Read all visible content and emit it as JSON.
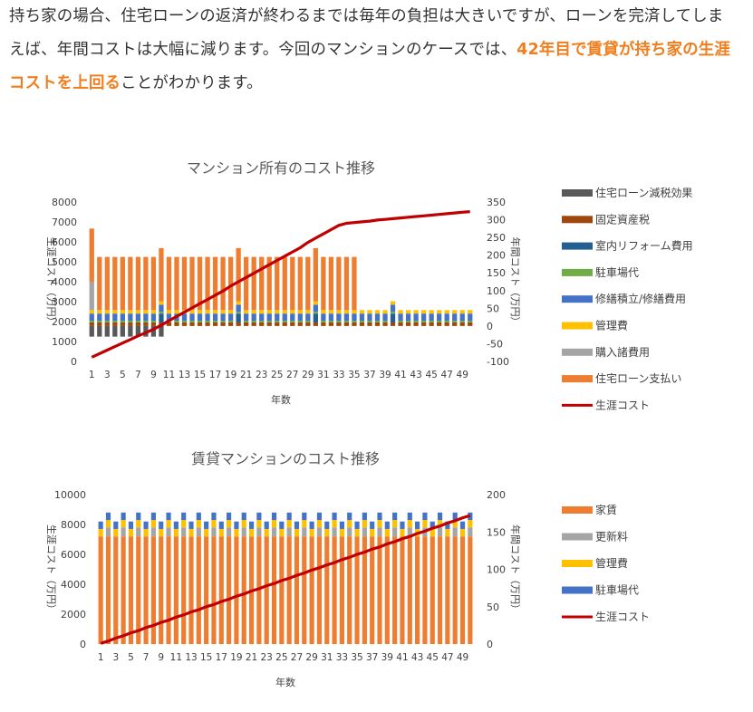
{
  "article": {
    "text_before": "持ち家の場合、住宅ローンの返済が終わるまでは毎年の負担は大きいですが、ローンを完済してしまえば、年間コストは大幅に減ります。今回のマンションのケースでは、",
    "highlight": "42年目で賃貸が持ち家の生涯コストを上回る",
    "text_after": "ことがわかります。"
  },
  "chart_data": [
    {
      "type": "bar",
      "stacked": true,
      "title": "マンション所有のコスト推移",
      "xlabel": "年数",
      "ylabel": "生涯コスト（万円）",
      "y2label": "年間コスト（万円）",
      "ylim": [
        0,
        8000
      ],
      "y2lim": [
        -100,
        350
      ],
      "yticks": [
        "0",
        "1000",
        "2000",
        "3000",
        "4000",
        "5000",
        "6000",
        "7000",
        "8000"
      ],
      "y2ticks": [
        "-100",
        "-50",
        "0",
        "50",
        "100",
        "150",
        "200",
        "250",
        "300",
        "350"
      ],
      "x": [
        1,
        2,
        3,
        4,
        5,
        6,
        7,
        8,
        9,
        10,
        11,
        12,
        13,
        14,
        15,
        16,
        17,
        18,
        19,
        20,
        21,
        22,
        23,
        24,
        25,
        26,
        27,
        28,
        29,
        30,
        31,
        32,
        33,
        34,
        35,
        36,
        37,
        38,
        39,
        40,
        41,
        42,
        43,
        44,
        45,
        46,
        47,
        48,
        49,
        50
      ],
      "xticks": [
        "1",
        "3",
        "5",
        "7",
        "9",
        "11",
        "13",
        "15",
        "17",
        "19",
        "21",
        "23",
        "25",
        "27",
        "29",
        "31",
        "33",
        "35",
        "37",
        "39",
        "41",
        "43",
        "45",
        "47",
        "49"
      ],
      "legend_position": "right",
      "axis": "y2",
      "series": [
        {
          "name": "住宅ローン減税効果",
          "color": "#595959",
          "segment": "below",
          "value_rule": "years 1-10",
          "value": -30
        },
        {
          "name": "固定資産税",
          "color": "#9e480e",
          "value": 10
        },
        {
          "name": "室内リフォーム費用",
          "color": "#255e91",
          "events": [
            10,
            20,
            30,
            40
          ],
          "value": 25
        },
        {
          "name": "駐車場代",
          "color": "#70ad47",
          "value": 5
        },
        {
          "name": "修繕積立/修繕費用",
          "color": "#4472c4",
          "value": 20
        },
        {
          "name": "管理費",
          "color": "#ffc000",
          "value": 10
        },
        {
          "name": "購入諸費用",
          "color": "#a5a5a5",
          "first_year": 80
        },
        {
          "name": "住宅ローン支払い",
          "color": "#ed7d31",
          "years": "1-35",
          "value": 150
        },
        {
          "name": "生涯コスト",
          "color": "#c00000",
          "kind": "line",
          "values": [
            -88,
            -78,
            -68,
            -58,
            -48,
            -38,
            -28,
            -19,
            -9,
            2,
            15,
            27,
            39,
            51,
            63,
            75,
            87,
            99,
            113,
            125,
            137,
            149,
            161,
            173,
            185,
            197,
            209,
            221,
            236,
            248,
            260,
            272,
            284,
            290,
            292,
            294,
            296,
            299,
            301,
            303,
            305,
            307,
            309,
            311,
            313,
            315,
            317,
            319,
            321,
            323
          ]
        }
      ]
    },
    {
      "type": "bar",
      "stacked": true,
      "title": "賃貸マンションのコスト推移",
      "xlabel": "年数",
      "ylabel": "生涯コスト（万円）",
      "y2label": "年間コスト（万円）",
      "ylim": [
        0,
        10000
      ],
      "y2lim": [
        0,
        200
      ],
      "yticks": [
        "0",
        "2000",
        "4000",
        "6000",
        "8000",
        "10000"
      ],
      "y2ticks": [
        "0",
        "50",
        "100",
        "150",
        "200"
      ],
      "x": [
        1,
        2,
        3,
        4,
        5,
        6,
        7,
        8,
        9,
        10,
        11,
        12,
        13,
        14,
        15,
        16,
        17,
        18,
        19,
        20,
        21,
        22,
        23,
        24,
        25,
        26,
        27,
        28,
        29,
        30,
        31,
        32,
        33,
        34,
        35,
        36,
        37,
        38,
        39,
        40,
        41,
        42,
        43,
        44,
        45,
        46,
        47,
        48,
        49,
        50
      ],
      "xticks": [
        "1",
        "3",
        "5",
        "7",
        "9",
        "11",
        "13",
        "15",
        "17",
        "19",
        "21",
        "23",
        "25",
        "27",
        "29",
        "31",
        "33",
        "35",
        "37",
        "39",
        "41",
        "43",
        "45",
        "47",
        "49"
      ],
      "legend_position": "right",
      "axis": "y2",
      "series": [
        {
          "name": "家賃",
          "color": "#ed7d31",
          "value": 144
        },
        {
          "name": "更新料",
          "color": "#a5a5a5",
          "every_other_year": 12
        },
        {
          "name": "管理費",
          "color": "#ffc000",
          "value": 10
        },
        {
          "name": "駐車場代",
          "color": "#4472c4",
          "value": 10
        },
        {
          "name": "生涯コスト",
          "color": "#c00000",
          "kind": "line",
          "values": [
            1,
            4,
            8,
            11,
            15,
            18,
            22,
            25,
            29,
            32,
            36,
            39,
            43,
            46,
            50,
            53,
            57,
            60,
            64,
            67,
            71,
            74,
            78,
            81,
            85,
            88,
            92,
            95,
            99,
            102,
            106,
            109,
            113,
            116,
            120,
            123,
            127,
            130,
            134,
            137,
            141,
            144,
            148,
            151,
            155,
            158,
            162,
            165,
            169,
            172
          ]
        }
      ]
    }
  ]
}
